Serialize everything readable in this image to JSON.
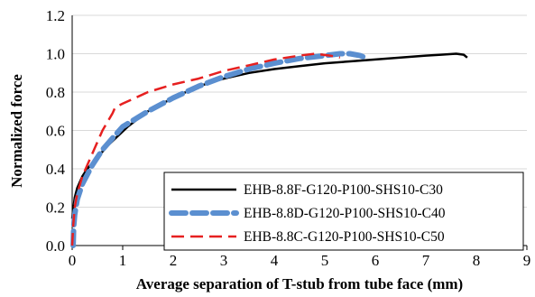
{
  "chart_data": {
    "type": "line",
    "xlabel": "Average separation of T-stub from tube face (mm)",
    "ylabel": "Normalized force",
    "xlim": [
      0,
      9
    ],
    "ylim": [
      0,
      1.2
    ],
    "x_ticks": [
      "0",
      "1",
      "2",
      "3",
      "4",
      "5",
      "6",
      "7",
      "8",
      "9"
    ],
    "y_ticks": [
      "0.0",
      "0.2",
      "0.4",
      "0.6",
      "0.8",
      "1.0",
      "1.2"
    ],
    "grid": "horizontal",
    "legend_position": "bottom-right",
    "series": [
      {
        "name": "EHB-8.8F-G120-P100-SHS10-C30",
        "color": "#000000",
        "style": "solid",
        "points": [
          [
            0,
            0.14
          ],
          [
            0.05,
            0.25
          ],
          [
            0.1,
            0.3
          ],
          [
            0.2,
            0.36
          ],
          [
            0.3,
            0.4
          ],
          [
            0.5,
            0.46
          ],
          [
            0.7,
            0.52
          ],
          [
            0.9,
            0.57
          ],
          [
            1.1,
            0.62
          ],
          [
            1.5,
            0.7
          ],
          [
            2,
            0.77
          ],
          [
            2.5,
            0.83
          ],
          [
            3,
            0.87
          ],
          [
            3.5,
            0.9
          ],
          [
            4,
            0.92
          ],
          [
            4.5,
            0.935
          ],
          [
            5,
            0.95
          ],
          [
            5.5,
            0.96
          ],
          [
            6,
            0.97
          ],
          [
            6.5,
            0.98
          ],
          [
            7,
            0.99
          ],
          [
            7.3,
            0.995
          ],
          [
            7.6,
            1.0
          ],
          [
            7.75,
            0.995
          ],
          [
            7.82,
            0.98
          ]
        ]
      },
      {
        "name": "EHB-8.8D-G120-P100-SHS10-C40",
        "color": "#5b8fd0",
        "style": "dash-thick",
        "points": [
          [
            0.02,
            0.0
          ],
          [
            0.03,
            0.1
          ],
          [
            0.05,
            0.16
          ],
          [
            0.1,
            0.24
          ],
          [
            0.2,
            0.32
          ],
          [
            0.4,
            0.42
          ],
          [
            0.6,
            0.5
          ],
          [
            0.8,
            0.56
          ],
          [
            1,
            0.62
          ],
          [
            1.5,
            0.7
          ],
          [
            2,
            0.77
          ],
          [
            2.5,
            0.83
          ],
          [
            3,
            0.88
          ],
          [
            3.5,
            0.92
          ],
          [
            4,
            0.95
          ],
          [
            4.5,
            0.975
          ],
          [
            5,
            0.99
          ],
          [
            5.3,
            1.0
          ],
          [
            5.5,
            1.0
          ],
          [
            5.7,
            0.99
          ],
          [
            5.8,
            0.98
          ]
        ]
      },
      {
        "name": "EHB-8.8C-G120-P100-SHS10-C50",
        "color": "#e62020",
        "style": "dash",
        "points": [
          [
            0,
            0.0
          ],
          [
            0.02,
            0.1
          ],
          [
            0.05,
            0.2
          ],
          [
            0.1,
            0.27
          ],
          [
            0.2,
            0.36
          ],
          [
            0.4,
            0.48
          ],
          [
            0.6,
            0.6
          ],
          [
            0.8,
            0.69
          ],
          [
            0.85,
            0.72
          ],
          [
            1,
            0.74
          ],
          [
            1.5,
            0.8
          ],
          [
            2,
            0.84
          ],
          [
            2.5,
            0.87
          ],
          [
            3,
            0.91
          ],
          [
            3.5,
            0.94
          ],
          [
            4,
            0.97
          ],
          [
            4.5,
            0.99
          ],
          [
            4.8,
            1.0
          ],
          [
            5.1,
            0.99
          ],
          [
            5.3,
            0.98
          ]
        ]
      }
    ]
  }
}
